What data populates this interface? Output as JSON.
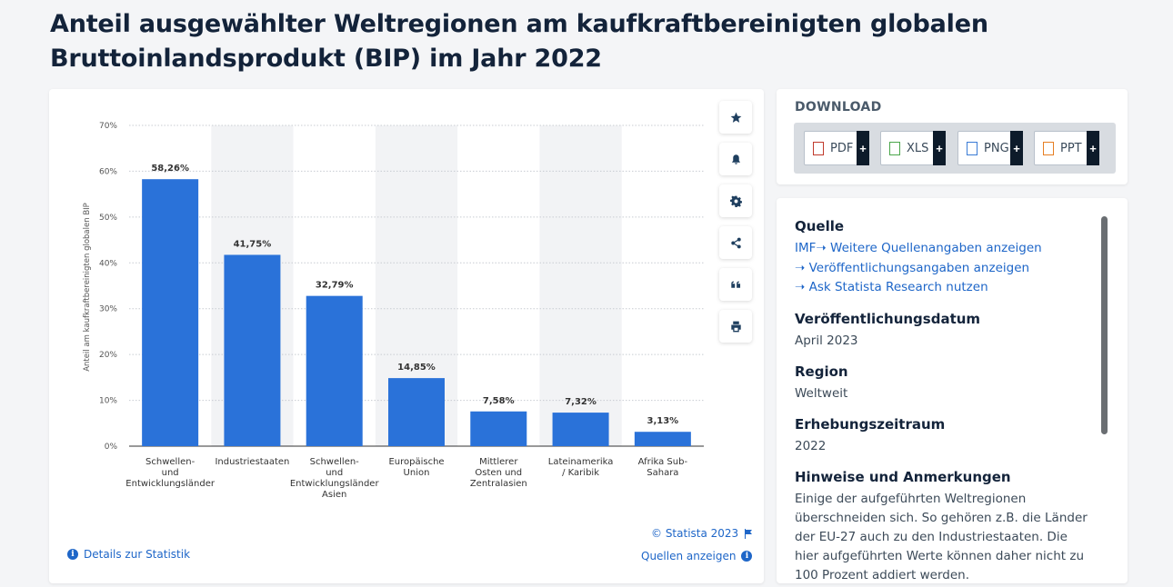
{
  "page": {
    "title": "Anteil ausgewählter Weltregionen am kaufkraftbereinigten globalen Bruttoinlandsprodukt (BIP) im Jahr 2022"
  },
  "chart_data": {
    "type": "bar",
    "title": "",
    "ylabel": "Anteil am kaufkraftbereinigten globalen BIP",
    "xlabel": "",
    "ylim": [
      0,
      70
    ],
    "yticks": [
      "0%",
      "10%",
      "20%",
      "30%",
      "40%",
      "50%",
      "60%",
      "70%"
    ],
    "grid": true,
    "categories": [
      [
        "Schwellen-",
        "und",
        "Entwicklungsländer"
      ],
      [
        "Industriestaaten"
      ],
      [
        "Schwellen-",
        "und",
        "Entwicklungsländer",
        "Asien"
      ],
      [
        "Europäische",
        "Union"
      ],
      [
        "Mittlerer",
        "Osten und",
        "Zentralasien"
      ],
      [
        "Lateinamerika",
        "/ Karibik"
      ],
      [
        "Afrika Sub-",
        "Sahara"
      ]
    ],
    "values": [
      58.26,
      41.75,
      32.79,
      14.85,
      7.58,
      7.32,
      3.13
    ],
    "value_labels": [
      "58,26%",
      "41,75%",
      "32,79%",
      "14,85%",
      "7,58%",
      "7,32%",
      "3,13%"
    ],
    "bar_color": "#2a72d9"
  },
  "chart_footer": {
    "copyright": "© Statista 2023",
    "details_link": "Details zur Statistik",
    "sources_link": "Quellen anzeigen"
  },
  "toolbar": {
    "icons": [
      "star-icon",
      "bell-icon",
      "gear-icon",
      "share-icon",
      "quote-icon",
      "print-icon"
    ]
  },
  "download": {
    "title": "DOWNLOAD",
    "buttons": [
      {
        "label": "PDF",
        "plus": "+",
        "color": "#c0392b"
      },
      {
        "label": "XLS",
        "plus": "+",
        "color": "#4aa64a"
      },
      {
        "label": "PNG",
        "plus": "+",
        "color": "#3a7bd5"
      },
      {
        "label": "PPT",
        "plus": "+",
        "color": "#e67e22"
      }
    ]
  },
  "info": {
    "source_heading": "Quelle",
    "source_prefix": "IMF",
    "source_links": [
      "Weitere Quellenangaben anzeigen",
      "Veröffentlichungsangaben anzeigen",
      "Ask Statista Research nutzen"
    ],
    "pubdate_heading": "Veröffentlichungsdatum",
    "pubdate_value": "April 2023",
    "region_heading": "Region",
    "region_value": "Weltweit",
    "period_heading": "Erhebungszeitraum",
    "period_value": "2022",
    "notes_heading": "Hinweise und Anmerkungen",
    "notes_text": "Einige der aufgeführten Weltregionen überschneiden sich. So gehören z.B. die Länder der EU-27 auch zu den Industriestaaten. Die hier aufgeführten Werte können daher nicht zu 100 Prozent addiert werden."
  }
}
